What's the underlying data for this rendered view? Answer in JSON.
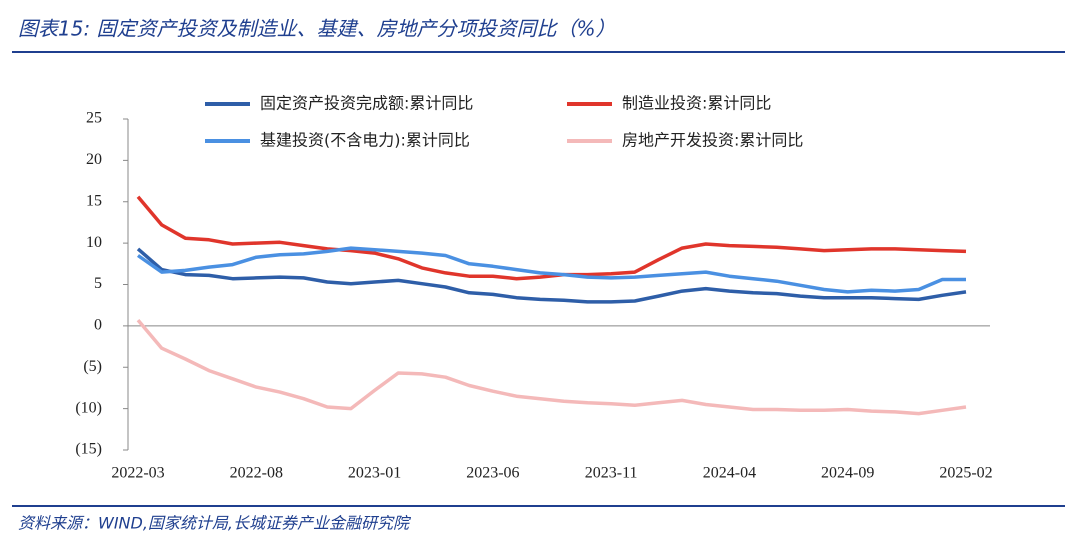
{
  "chart_data": {
    "type": "line",
    "title": "图表15: 固定资产投资及制造业、基建、房地产分项投资同比（%）",
    "source": "资料来源：WIND,国家统计局,长城证券产业金融研究院",
    "categories": [
      "2022-03",
      null,
      null,
      null,
      null,
      "2022-08",
      null,
      null,
      null,
      null,
      "2023-01",
      null,
      null,
      null,
      null,
      "2023-06",
      null,
      null,
      null,
      null,
      "2023-11",
      null,
      null,
      null,
      null,
      "2024-04",
      null,
      null,
      null,
      null,
      "2024-09",
      null,
      null,
      null,
      null,
      "2025-02"
    ],
    "series": [
      {
        "name": "固定资产投资完成额:累计同比",
        "color": "#2e5ea8",
        "values": [
          9.3,
          6.8,
          6.2,
          6.1,
          5.7,
          5.8,
          5.9,
          5.8,
          5.3,
          5.1,
          5.3,
          5.5,
          5.1,
          4.7,
          4.0,
          3.8,
          3.4,
          3.2,
          3.1,
          2.9,
          2.9,
          3.0,
          3.6,
          4.2,
          4.5,
          4.2,
          4.0,
          3.9,
          3.6,
          3.4,
          3.4,
          3.4,
          3.3,
          3.2,
          3.7,
          4.1
        ]
      },
      {
        "name": "制造业投资:累计同比",
        "color": "#e0352b",
        "values": [
          15.6,
          12.2,
          10.6,
          10.4,
          9.9,
          10.0,
          10.1,
          9.7,
          9.3,
          9.1,
          8.8,
          8.1,
          7.0,
          6.4,
          6.0,
          6.0,
          5.7,
          5.9,
          6.2,
          6.2,
          6.3,
          6.5,
          8.0,
          9.4,
          9.9,
          9.7,
          9.6,
          9.5,
          9.3,
          9.1,
          9.2,
          9.3,
          9.3,
          9.2,
          9.1,
          9.0
        ]
      },
      {
        "name": "基建投资(不含电力):累计同比",
        "color": "#4a90e2",
        "values": [
          8.5,
          6.5,
          6.7,
          7.1,
          7.4,
          8.3,
          8.6,
          8.7,
          9.0,
          9.4,
          9.2,
          9.0,
          8.8,
          8.5,
          7.5,
          7.2,
          6.8,
          6.4,
          6.2,
          5.9,
          5.8,
          5.9,
          6.1,
          6.3,
          6.5,
          6.0,
          5.7,
          5.4,
          4.9,
          4.4,
          4.1,
          4.3,
          4.2,
          4.4,
          5.6,
          5.6
        ]
      },
      {
        "name": "房地产开发投资:累计同比",
        "color": "#f4b9b9",
        "values": [
          0.7,
          -2.7,
          -4.0,
          -5.4,
          -6.4,
          -7.4,
          -8.0,
          -8.8,
          -9.8,
          -10.0,
          -7.8,
          -5.7,
          -5.8,
          -6.2,
          -7.2,
          -7.9,
          -8.5,
          -8.8,
          -9.1,
          -9.3,
          -9.4,
          -9.6,
          -9.3,
          -9.0,
          -9.5,
          -9.8,
          -10.1,
          -10.1,
          -10.2,
          -10.2,
          -10.1,
          -10.3,
          -10.4,
          -10.6,
          -10.2,
          -9.8
        ]
      }
    ],
    "ylim": [
      -15,
      25
    ],
    "yticks": [
      {
        "value": -15,
        "label": "(15)"
      },
      {
        "value": -10,
        "label": "(10)"
      },
      {
        "value": -5,
        "label": "(5)"
      },
      0,
      5,
      10,
      15,
      20,
      25
    ]
  }
}
